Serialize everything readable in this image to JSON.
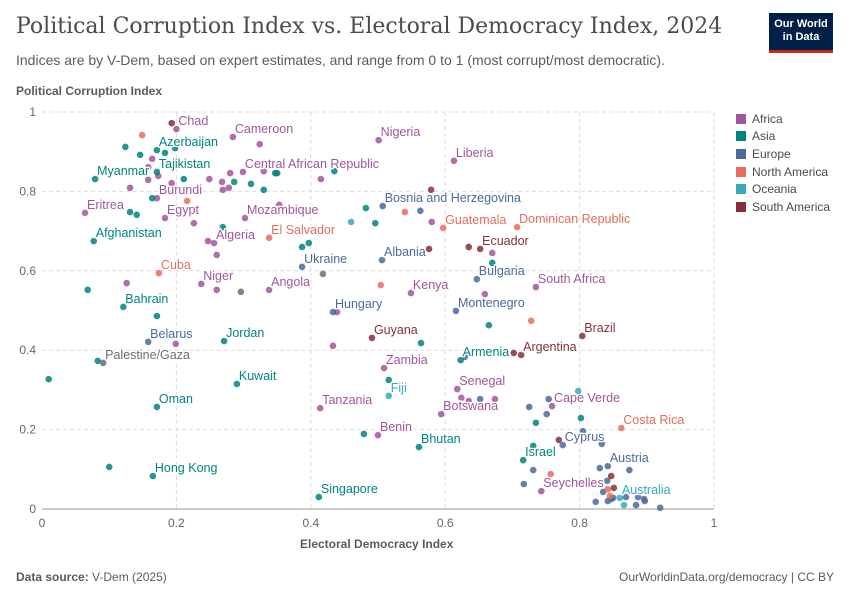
{
  "header": {
    "title": "Political Corruption Index vs. Electoral Democracy Index, 2024",
    "subtitle": "Indices are by V-Dem, based on expert estimates, and range from 0 to 1 (most corrupt/most democratic).",
    "logo_text": "Our World in Data"
  },
  "footer": {
    "source_label": "Data source:",
    "source": "V-Dem (2025)",
    "link": "OurWorldinData.org/democracy | CC BY"
  },
  "chart_data": {
    "type": "scatter",
    "title": "Political Corruption Index vs. Electoral Democracy Index, 2024",
    "xlabel": "Electoral Democracy Index",
    "ylabel": "Political Corruption Index",
    "xlim": [
      0,
      1
    ],
    "ylim": [
      0,
      1
    ],
    "xticks": [
      "0",
      "0.2",
      "0.4",
      "0.6",
      "0.8",
      "1"
    ],
    "yticks": [
      "0",
      "0.2",
      "0.4",
      "0.6",
      "0.8",
      "1"
    ],
    "grid": true,
    "legend_position": "right",
    "legend": [
      {
        "name": "Africa",
        "color": "#a2559c"
      },
      {
        "name": "Asia",
        "color": "#00847e"
      },
      {
        "name": "Europe",
        "color": "#4c6a9c"
      },
      {
        "name": "North America",
        "color": "#e56e5a"
      },
      {
        "name": "Oceania",
        "color": "#38aaba"
      },
      {
        "name": "South America",
        "color": "#883039"
      }
    ],
    "other_color": "#6d6d6d",
    "points": [
      [
        0.2,
        0.957,
        "Africa",
        "Chad"
      ],
      [
        0.284,
        0.937,
        "Africa",
        "Cameroon"
      ],
      [
        0.501,
        0.929,
        "Africa",
        "Nigeria"
      ],
      [
        0.613,
        0.877,
        "Africa",
        "Liberia"
      ],
      [
        0.299,
        0.849,
        "Africa",
        "Central African Republic"
      ],
      [
        0.064,
        0.746,
        "Africa",
        "Eritrea"
      ],
      [
        0.171,
        0.783,
        "Africa",
        "Burundi"
      ],
      [
        0.183,
        0.733,
        "Africa",
        "Egypt"
      ],
      [
        0.302,
        0.733,
        "Africa",
        "Mozambique"
      ],
      [
        0.256,
        0.67,
        "Africa",
        "Algeria"
      ],
      [
        0.237,
        0.567,
        "Africa",
        "Niger"
      ],
      [
        0.338,
        0.552,
        "Africa",
        "Angola"
      ],
      [
        0.549,
        0.544,
        "Africa",
        "Kenya"
      ],
      [
        0.735,
        0.559,
        "Africa",
        "South Africa"
      ],
      [
        0.509,
        0.355,
        "Africa",
        "Zambia"
      ],
      [
        0.618,
        0.302,
        "Africa",
        "Senegal"
      ],
      [
        0.594,
        0.239,
        "Africa",
        "Botswana"
      ],
      [
        0.5,
        0.186,
        "Africa",
        "Benin"
      ],
      [
        0.414,
        0.254,
        "Africa",
        "Tanzania"
      ],
      [
        0.743,
        0.045,
        "Africa",
        "Seychelles"
      ],
      [
        0.759,
        0.259,
        "Africa",
        "Cape Verde"
      ],
      [
        0.131,
        0.809,
        "Africa",
        ""
      ],
      [
        0.158,
        0.829,
        "Africa",
        ""
      ],
      [
        0.173,
        0.839,
        "Africa",
        ""
      ],
      [
        0.193,
        0.821,
        "Africa",
        ""
      ],
      [
        0.249,
        0.831,
        "Africa",
        ""
      ],
      [
        0.28,
        0.846,
        "Africa",
        ""
      ],
      [
        0.268,
        0.824,
        "Africa",
        ""
      ],
      [
        0.269,
        0.804,
        "Africa",
        ""
      ],
      [
        0.278,
        0.809,
        "Africa",
        ""
      ],
      [
        0.33,
        0.851,
        "Africa",
        ""
      ],
      [
        0.415,
        0.831,
        "Africa",
        ""
      ],
      [
        0.324,
        0.919,
        "Africa",
        ""
      ],
      [
        0.164,
        0.882,
        "Africa",
        ""
      ],
      [
        0.158,
        0.861,
        "Africa",
        ""
      ],
      [
        0.226,
        0.72,
        "Africa",
        ""
      ],
      [
        0.247,
        0.675,
        "Africa",
        ""
      ],
      [
        0.26,
        0.64,
        "Africa",
        ""
      ],
      [
        0.26,
        0.552,
        "Africa",
        ""
      ],
      [
        0.353,
        0.766,
        "Africa",
        ""
      ],
      [
        0.126,
        0.569,
        "Africa",
        ""
      ],
      [
        0.199,
        0.416,
        "Africa",
        ""
      ],
      [
        0.433,
        0.411,
        "Africa",
        ""
      ],
      [
        0.439,
        0.496,
        "Africa",
        ""
      ],
      [
        0.58,
        0.723,
        "Africa",
        ""
      ],
      [
        0.67,
        0.645,
        "Africa",
        ""
      ],
      [
        0.659,
        0.541,
        "Africa",
        ""
      ],
      [
        0.624,
        0.28,
        "Africa",
        ""
      ],
      [
        0.635,
        0.272,
        "Africa",
        ""
      ],
      [
        0.674,
        0.277,
        "Africa",
        ""
      ],
      [
        0.171,
        0.904,
        "Asia",
        "Azerbaijan"
      ],
      [
        0.171,
        0.849,
        "Asia",
        "Tajikistan"
      ],
      [
        0.079,
        0.831,
        "Asia",
        "Myanmar"
      ],
      [
        0.077,
        0.675,
        "Asia",
        "Afghanistan"
      ],
      [
        0.121,
        0.509,
        "Asia",
        "Bahrain"
      ],
      [
        0.271,
        0.423,
        "Asia",
        "Jordan"
      ],
      [
        0.29,
        0.315,
        "Asia",
        "Kuwait"
      ],
      [
        0.171,
        0.257,
        "Asia",
        "Oman"
      ],
      [
        0.165,
        0.083,
        "Asia",
        "Hong Kong"
      ],
      [
        0.412,
        0.03,
        "Asia",
        "Singapore"
      ],
      [
        0.561,
        0.156,
        "Asia",
        "Bhutan"
      ],
      [
        0.716,
        0.123,
        "Asia",
        "Israel"
      ],
      [
        0.623,
        0.375,
        "Asia",
        "Armenia"
      ],
      [
        0.124,
        0.912,
        "Asia",
        ""
      ],
      [
        0.146,
        0.892,
        "Asia",
        ""
      ],
      [
        0.183,
        0.897,
        "Asia",
        ""
      ],
      [
        0.198,
        0.909,
        "Asia",
        ""
      ],
      [
        0.211,
        0.831,
        "Asia",
        ""
      ],
      [
        0.286,
        0.824,
        "Asia",
        ""
      ],
      [
        0.311,
        0.819,
        "Asia",
        ""
      ],
      [
        0.33,
        0.804,
        "Asia",
        ""
      ],
      [
        0.347,
        0.846,
        "Asia",
        ""
      ],
      [
        0.35,
        0.846,
        "Asia",
        ""
      ],
      [
        0.435,
        0.851,
        "Asia",
        ""
      ],
      [
        0.164,
        0.783,
        "Asia",
        ""
      ],
      [
        0.131,
        0.748,
        "Asia",
        ""
      ],
      [
        0.141,
        0.741,
        "Asia",
        ""
      ],
      [
        0.269,
        0.71,
        "Asia",
        ""
      ],
      [
        0.387,
        0.66,
        "Asia",
        ""
      ],
      [
        0.397,
        0.67,
        "Asia",
        ""
      ],
      [
        0.482,
        0.758,
        "Asia",
        ""
      ],
      [
        0.496,
        0.72,
        "Asia",
        ""
      ],
      [
        0.068,
        0.552,
        "Asia",
        ""
      ],
      [
        0.171,
        0.486,
        "Asia",
        ""
      ],
      [
        0.083,
        0.373,
        "Asia",
        ""
      ],
      [
        0.01,
        0.327,
        "Asia",
        ""
      ],
      [
        0.1,
        0.106,
        "Asia",
        ""
      ],
      [
        0.479,
        0.189,
        "Asia",
        ""
      ],
      [
        0.665,
        0.463,
        "Asia",
        ""
      ],
      [
        0.564,
        0.418,
        "Asia",
        ""
      ],
      [
        0.516,
        0.325,
        "Asia",
        ""
      ],
      [
        0.735,
        0.217,
        "Asia",
        ""
      ],
      [
        0.802,
        0.229,
        "Asia",
        ""
      ],
      [
        0.731,
        0.159,
        "Asia",
        ""
      ],
      [
        0.67,
        0.62,
        "Asia",
        ""
      ],
      [
        0.387,
        0.61,
        "Europe",
        "Ukraine"
      ],
      [
        0.433,
        0.496,
        "Europe",
        "Hungary"
      ],
      [
        0.158,
        0.421,
        "Europe",
        "Belarus"
      ],
      [
        0.507,
        0.763,
        "Europe",
        "Bosnia and Herzegovina"
      ],
      [
        0.506,
        0.627,
        "Europe",
        "Albania"
      ],
      [
        0.647,
        0.579,
        "Europe",
        "Bulgaria"
      ],
      [
        0.616,
        0.499,
        "Europe",
        "Montenegro"
      ],
      [
        0.775,
        0.161,
        "Europe",
        "Cyprus"
      ],
      [
        0.842,
        0.108,
        "Europe",
        "Austria"
      ],
      [
        0.563,
        0.751,
        "Europe",
        ""
      ],
      [
        0.629,
        0.383,
        "Europe",
        ""
      ],
      [
        0.652,
        0.277,
        "Europe",
        ""
      ],
      [
        0.725,
        0.257,
        "Europe",
        ""
      ],
      [
        0.754,
        0.277,
        "Europe",
        ""
      ],
      [
        0.751,
        0.239,
        "Europe",
        ""
      ],
      [
        0.805,
        0.196,
        "Europe",
        ""
      ],
      [
        0.833,
        0.164,
        "Europe",
        ""
      ],
      [
        0.83,
        0.103,
        "Europe",
        ""
      ],
      [
        0.874,
        0.098,
        "Europe",
        ""
      ],
      [
        0.731,
        0.098,
        "Europe",
        ""
      ],
      [
        0.717,
        0.063,
        "Europe",
        ""
      ],
      [
        0.841,
        0.071,
        "Europe",
        ""
      ],
      [
        0.835,
        0.043,
        "Europe",
        ""
      ],
      [
        0.824,
        0.018,
        "Europe",
        ""
      ],
      [
        0.842,
        0.02,
        "Europe",
        ""
      ],
      [
        0.847,
        0.025,
        "Europe",
        ""
      ],
      [
        0.869,
        0.03,
        "Europe",
        ""
      ],
      [
        0.887,
        0.03,
        "Europe",
        ""
      ],
      [
        0.896,
        0.025,
        "Europe",
        ""
      ],
      [
        0.897,
        0.02,
        "Europe",
        ""
      ],
      [
        0.884,
        0.01,
        "Europe",
        ""
      ],
      [
        0.92,
        0.003,
        "Europe",
        ""
      ],
      [
        0.85,
        0.028,
        "Europe",
        ""
      ],
      [
        0.338,
        0.683,
        "North America",
        "El Salvador"
      ],
      [
        0.174,
        0.594,
        "North America",
        "Cuba"
      ],
      [
        0.597,
        0.708,
        "North America",
        "Guatemala"
      ],
      [
        0.707,
        0.71,
        "North America",
        "Dominican Republic"
      ],
      [
        0.862,
        0.204,
        "North America",
        "Costa Rica"
      ],
      [
        0.149,
        0.942,
        "North America",
        ""
      ],
      [
        0.216,
        0.776,
        "North America",
        ""
      ],
      [
        0.54,
        0.748,
        "North America",
        ""
      ],
      [
        0.504,
        0.564,
        "North America",
        ""
      ],
      [
        0.728,
        0.474,
        "North America",
        ""
      ],
      [
        0.757,
        0.088,
        "North America",
        ""
      ],
      [
        0.842,
        0.05,
        "North America",
        ""
      ],
      [
        0.845,
        0.033,
        "North America",
        ""
      ],
      [
        0.516,
        0.285,
        "Oceania",
        "Fiji"
      ],
      [
        0.86,
        0.028,
        "Oceania",
        "Australia"
      ],
      [
        0.46,
        0.723,
        "Oceania",
        ""
      ],
      [
        0.798,
        0.297,
        "Oceania",
        ""
      ],
      [
        0.866,
        0.01,
        "Oceania",
        ""
      ],
      [
        0.652,
        0.655,
        "South America",
        "Ecuador"
      ],
      [
        0.491,
        0.431,
        "South America",
        "Guyana"
      ],
      [
        0.804,
        0.436,
        "South America",
        "Brazil"
      ],
      [
        0.713,
        0.388,
        "South America",
        "Argentina"
      ],
      [
        0.193,
        0.972,
        "South America",
        ""
      ],
      [
        0.579,
        0.804,
        "South America",
        ""
      ],
      [
        0.576,
        0.655,
        "South America",
        ""
      ],
      [
        0.635,
        0.66,
        "South America",
        ""
      ],
      [
        0.702,
        0.393,
        "South America",
        ""
      ],
      [
        0.769,
        0.174,
        "South America",
        ""
      ],
      [
        0.847,
        0.083,
        "South America",
        ""
      ],
      [
        0.851,
        0.053,
        "South America",
        ""
      ],
      [
        0.091,
        0.368,
        "Other",
        "Palestine/Gaza"
      ],
      [
        0.296,
        0.547,
        "Other",
        ""
      ],
      [
        0.418,
        0.592,
        "Other",
        ""
      ]
    ]
  }
}
